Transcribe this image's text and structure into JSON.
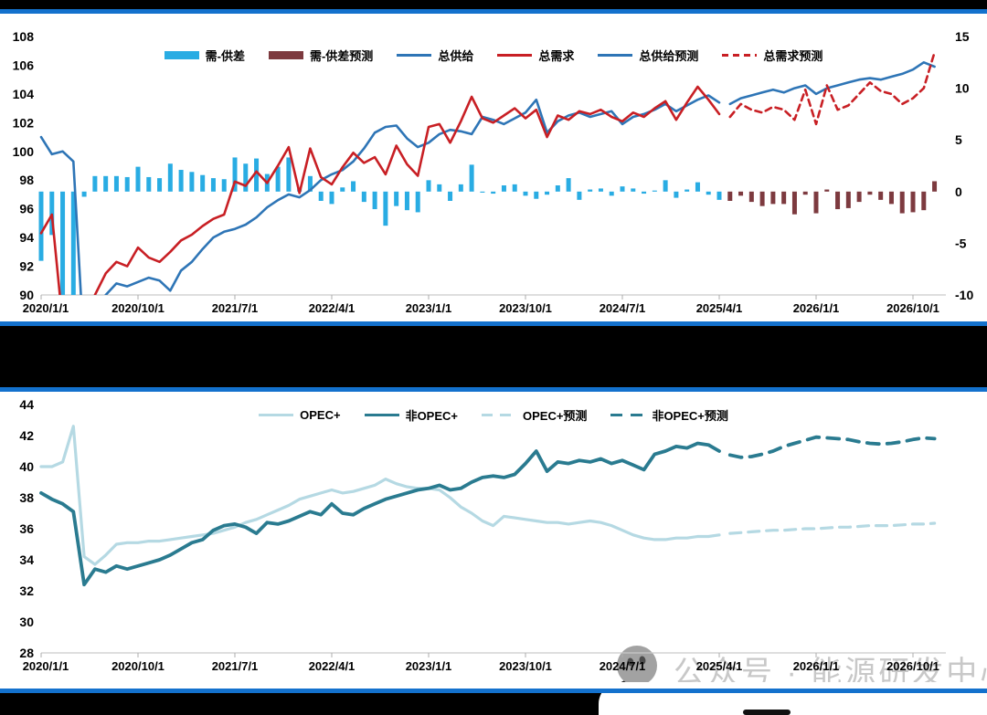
{
  "page": {
    "background": "#000000",
    "panel_border_color": "#1371cd"
  },
  "watermark": {
    "icon": "wechat-icon",
    "text": "公众号 · 能源研发中心",
    "color": "#c6c6c6"
  },
  "chart_data": [
    {
      "id": "supply-demand-balance",
      "type": "bar",
      "subtype": "combo-bar-line-dual-axis",
      "title": "",
      "x_interval": "monthly",
      "x_start": "2020-01",
      "x_end": "2026-12",
      "forecast_start": "2025-05",
      "x_tick_labels": [
        "2020/1/1",
        "2020/10/1",
        "2021/7/1",
        "2022/4/1",
        "2023/1/1",
        "2023/10/1",
        "2024/7/1",
        "2025/4/1",
        "2026/1/1",
        "2026/10/1"
      ],
      "y_left": {
        "min": 90,
        "max": 108,
        "step": 2,
        "ticks": [
          90,
          92,
          94,
          96,
          98,
          100,
          102,
          104,
          106,
          108
        ]
      },
      "y_right": {
        "min": -10,
        "max": 15,
        "step": 5,
        "ticks": [
          -10,
          -5,
          0,
          5,
          10,
          15
        ]
      },
      "grid": false,
      "legend_position": "top",
      "series": [
        {
          "name": "需-供差",
          "type": "bar",
          "axis": "right",
          "color": "#29ace3",
          "forecast": false,
          "values": [
            -6.7,
            -4.2,
            -10.0,
            -10.0,
            -0.5,
            1.5,
            1.5,
            1.5,
            1.4,
            2.4,
            1.4,
            1.3,
            2.7,
            2.1,
            1.9,
            1.6,
            1.3,
            1.2,
            3.3,
            2.7,
            3.2,
            1.7,
            2.4,
            3.3,
            0.3,
            1.5,
            -0.9,
            -1.2,
            0.4,
            1.0,
            -1.0,
            -1.7,
            -3.3,
            -1.4,
            -1.8,
            -2.0,
            1.1,
            0.7,
            -0.9,
            0.7,
            2.6,
            -0.1,
            -0.2,
            0.6,
            0.7,
            -0.4,
            -0.7,
            -0.3,
            0.6,
            1.3,
            -0.8,
            0.2,
            0.3,
            -0.4,
            0.5,
            0.3,
            -0.2,
            0.1,
            1.1,
            -0.6,
            0.2,
            0.9,
            -0.3,
            -0.8
          ]
        },
        {
          "name": "需-供差预测",
          "type": "bar",
          "axis": "right",
          "color": "#7d3a3f",
          "forecast": true,
          "values": [
            -0.9,
            -0.4,
            -1.0,
            -1.4,
            -1.2,
            -1.2,
            -2.2,
            -0.3,
            -2.1,
            0.2,
            -1.7,
            -1.6,
            -1.0,
            -0.3,
            -0.8,
            -1.2,
            -2.1,
            -2.0,
            -1.8,
            1.0
          ]
        },
        {
          "name": "总供给",
          "type": "line",
          "axis": "left",
          "color": "#2e75b6",
          "width": 2.6,
          "forecast": false,
          "values": [
            101.0,
            99.8,
            100.0,
            99.3,
            86.0,
            88.5,
            90.0,
            90.8,
            90.6,
            90.9,
            91.2,
            91.0,
            90.3,
            91.7,
            92.3,
            93.2,
            94.0,
            94.4,
            94.6,
            94.9,
            95.4,
            96.1,
            96.6,
            97.0,
            96.8,
            97.3,
            98.0,
            98.4,
            98.7,
            99.3,
            100.2,
            101.3,
            101.7,
            101.8,
            100.9,
            100.3,
            100.6,
            101.2,
            101.5,
            101.4,
            101.2,
            102.4,
            102.2,
            101.9,
            102.3,
            102.7,
            103.6,
            101.3,
            102.1,
            102.5,
            102.7,
            102.4,
            102.6,
            102.8,
            101.9,
            102.4,
            102.6,
            102.9,
            103.3,
            102.8,
            103.2,
            103.6,
            103.9,
            103.4
          ]
        },
        {
          "name": "总需求",
          "type": "line",
          "axis": "left",
          "color": "#c81f24",
          "width": 2.6,
          "forecast": false,
          "values": [
            94.3,
            95.6,
            88.0,
            83.0,
            85.5,
            90.0,
            91.5,
            92.3,
            92.0,
            93.3,
            92.6,
            92.3,
            93.0,
            93.8,
            94.2,
            94.8,
            95.3,
            95.6,
            97.9,
            97.6,
            98.6,
            97.8,
            99.0,
            100.3,
            97.1,
            100.2,
            98.2,
            97.7,
            98.9,
            99.9,
            99.2,
            99.6,
            98.4,
            100.4,
            99.1,
            98.3,
            101.7,
            101.9,
            100.6,
            102.1,
            103.8,
            102.3,
            102.0,
            102.5,
            103.0,
            102.3,
            102.9,
            101.0,
            102.5,
            102.2,
            102.8,
            102.6,
            102.9,
            102.4,
            102.1,
            102.7,
            102.4,
            103.0,
            103.5,
            102.2,
            103.4,
            104.5,
            103.6,
            102.6
          ]
        },
        {
          "name": "总供给预测",
          "type": "line",
          "axis": "left",
          "color": "#2e75b6",
          "width": 2.6,
          "forecast": true,
          "values": [
            103.3,
            103.7,
            103.9,
            104.1,
            104.3,
            104.1,
            104.4,
            104.6,
            104.0,
            104.4,
            104.6,
            104.8,
            105.0,
            105.1,
            105.0,
            105.2,
            105.4,
            105.7,
            106.2,
            105.9
          ]
        },
        {
          "name": "总需求预测",
          "type": "line",
          "axis": "left",
          "color": "#c81f24",
          "width": 2.6,
          "dash": [
            7,
            5
          ],
          "forecast": true,
          "values": [
            102.4,
            103.3,
            102.9,
            102.7,
            103.1,
            102.9,
            102.2,
            104.3,
            101.9,
            104.6,
            102.9,
            103.2,
            104.0,
            104.8,
            104.2,
            104.0,
            103.3,
            103.7,
            104.4,
            106.9
          ]
        }
      ]
    },
    {
      "id": "opec-vs-non-opec",
      "type": "line",
      "title": "",
      "x_interval": "monthly",
      "x_start": "2020-01",
      "x_end": "2026-12",
      "forecast_start": "2025-05",
      "x_tick_labels": [
        "2020/1/1",
        "2020/10/1",
        "2021/7/1",
        "2022/4/1",
        "2023/1/1",
        "2023/10/1",
        "2024/7/1",
        "2025/4/1",
        "2026/1/1",
        "2026/10/1"
      ],
      "y_left": {
        "min": 28,
        "max": 44,
        "step": 2,
        "ticks": [
          28,
          30,
          32,
          34,
          36,
          38,
          40,
          42,
          44
        ]
      },
      "grid": false,
      "legend_position": "top",
      "series": [
        {
          "name": "OPEC+",
          "type": "line",
          "axis": "left",
          "color": "#b5d9e3",
          "width": 3.2,
          "forecast": false,
          "values": [
            40.0,
            40.0,
            40.3,
            42.6,
            34.2,
            33.7,
            34.3,
            35.0,
            35.1,
            35.1,
            35.2,
            35.2,
            35.3,
            35.4,
            35.5,
            35.6,
            35.7,
            35.9,
            36.1,
            36.4,
            36.6,
            36.9,
            37.2,
            37.5,
            37.9,
            38.1,
            38.3,
            38.5,
            38.3,
            38.4,
            38.6,
            38.8,
            39.2,
            38.9,
            38.7,
            38.6,
            38.6,
            38.5,
            38.0,
            37.4,
            37.0,
            36.5,
            36.2,
            36.8,
            36.7,
            36.6,
            36.5,
            36.4,
            36.4,
            36.3,
            36.4,
            36.5,
            36.4,
            36.2,
            35.9,
            35.6,
            35.4,
            35.3,
            35.3,
            35.4,
            35.4,
            35.5,
            35.5,
            35.6
          ]
        },
        {
          "name": "非OPEC+",
          "type": "line",
          "axis": "left",
          "color": "#2a7b90",
          "width": 3.8,
          "forecast": false,
          "values": [
            38.3,
            37.9,
            37.6,
            37.1,
            32.4,
            33.4,
            33.2,
            33.6,
            33.4,
            33.6,
            33.8,
            34.0,
            34.3,
            34.7,
            35.1,
            35.3,
            35.9,
            36.2,
            36.3,
            36.1,
            35.7,
            36.4,
            36.3,
            36.5,
            36.8,
            37.1,
            36.9,
            37.6,
            37.0,
            36.9,
            37.3,
            37.6,
            37.9,
            38.1,
            38.3,
            38.5,
            38.6,
            38.8,
            38.5,
            38.6,
            39.0,
            39.3,
            39.4,
            39.3,
            39.5,
            40.2,
            41.0,
            39.7,
            40.3,
            40.2,
            40.4,
            40.3,
            40.5,
            40.2,
            40.4,
            40.1,
            39.8,
            40.8,
            41.0,
            41.3,
            41.2,
            41.5,
            41.4,
            41.0
          ]
        },
        {
          "name": "OPEC+预测",
          "type": "line",
          "axis": "left",
          "color": "#b5d9e3",
          "width": 3.2,
          "dash": [
            12,
            8
          ],
          "forecast": true,
          "values": [
            35.7,
            35.75,
            35.8,
            35.85,
            35.9,
            35.9,
            35.95,
            36.0,
            36.0,
            36.05,
            36.1,
            36.1,
            36.15,
            36.2,
            36.2,
            36.2,
            36.25,
            36.3,
            36.3,
            36.35
          ]
        },
        {
          "name": "非OPEC+预测",
          "type": "line",
          "axis": "left",
          "color": "#2a7b90",
          "width": 3.8,
          "dash": [
            13,
            9
          ],
          "forecast": true,
          "values": [
            40.75,
            40.6,
            40.65,
            40.8,
            41.0,
            41.3,
            41.5,
            41.7,
            41.9,
            41.85,
            41.8,
            41.75,
            41.6,
            41.5,
            41.45,
            41.5,
            41.6,
            41.75,
            41.85,
            41.8
          ]
        }
      ]
    }
  ]
}
